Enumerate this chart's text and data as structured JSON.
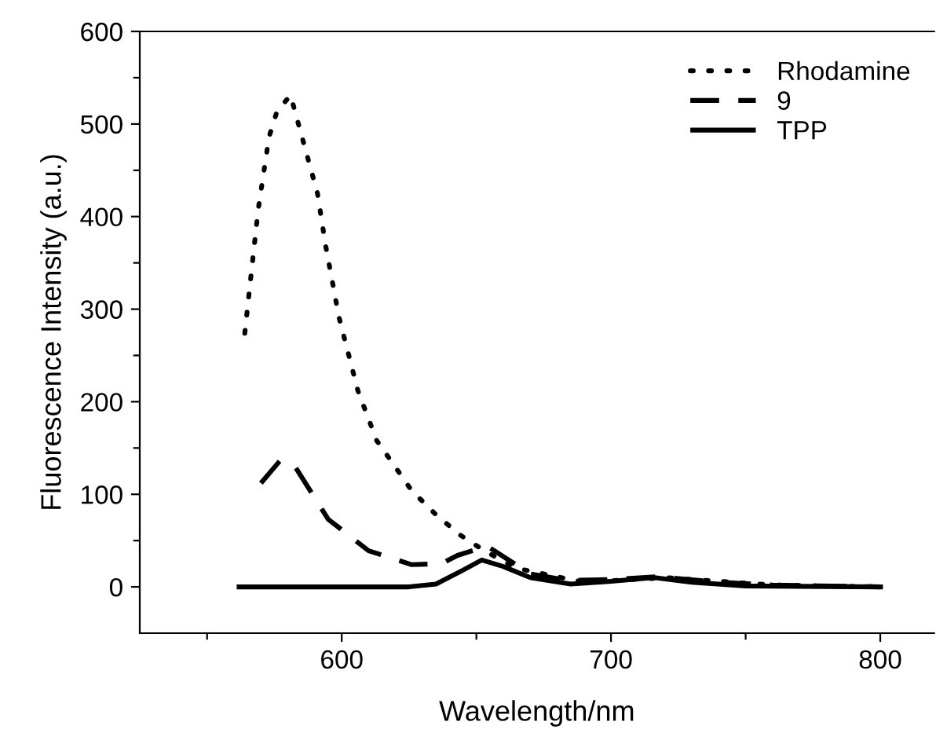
{
  "chart_data": {
    "type": "line",
    "xlabel": "Wavelength/nm",
    "ylabel": "Fluorescence Intensity (a.u.)",
    "xlim": [
      525,
      820
    ],
    "ylim": [
      -50,
      600
    ],
    "xticks": [
      {
        "value": 550,
        "label": null
      },
      600,
      {
        "value": 650,
        "label": null
      },
      700,
      {
        "value": 750,
        "label": null
      },
      800
    ],
    "yticks": [
      0,
      {
        "value": 50,
        "label": null
      },
      100,
      {
        "value": 150,
        "label": null
      },
      200,
      {
        "value": 250,
        "label": null
      },
      300,
      {
        "value": 350,
        "label": null
      },
      400,
      {
        "value": 450,
        "label": null
      },
      500,
      {
        "value": 550,
        "label": null
      },
      600
    ],
    "grid": false,
    "legend": "top right",
    "series": [
      {
        "name": "Rhodamine",
        "color": "#000000",
        "line_style": "dotted",
        "x": [
          564,
          566,
          569,
          573,
          576,
          581,
          591,
          594,
          599,
          606,
          613,
          626,
          635,
          644,
          653,
          665,
          690,
          720,
          760,
          800
        ],
        "values": [
          274,
          328,
          408,
          486,
          514,
          531,
          425,
          369,
          291,
          212,
          158,
          104,
          78,
          56,
          39,
          20,
          5,
          10,
          2,
          0
        ]
      },
      {
        "name": "9",
        "color": "#000000",
        "line_style": "dashed",
        "x": [
          570,
          577,
          582,
          595,
          610,
          626,
          637,
          643,
          654,
          670,
          684,
          700,
          717,
          740,
          760,
          800
        ],
        "values": [
          112,
          136,
          133,
          73,
          39,
          24,
          25,
          34,
          44,
          14,
          7,
          8,
          11,
          5,
          2,
          0
        ]
      },
      {
        "name": "TPP",
        "color": "#000000",
        "line_style": "solid",
        "x": [
          561,
          600,
          625,
          635,
          645,
          652,
          660,
          670,
          685,
          700,
          716,
          730,
          750,
          801
        ],
        "values": [
          0,
          0,
          0,
          3,
          18,
          29,
          22,
          10,
          3,
          6,
          10,
          5,
          1,
          0
        ]
      }
    ]
  }
}
